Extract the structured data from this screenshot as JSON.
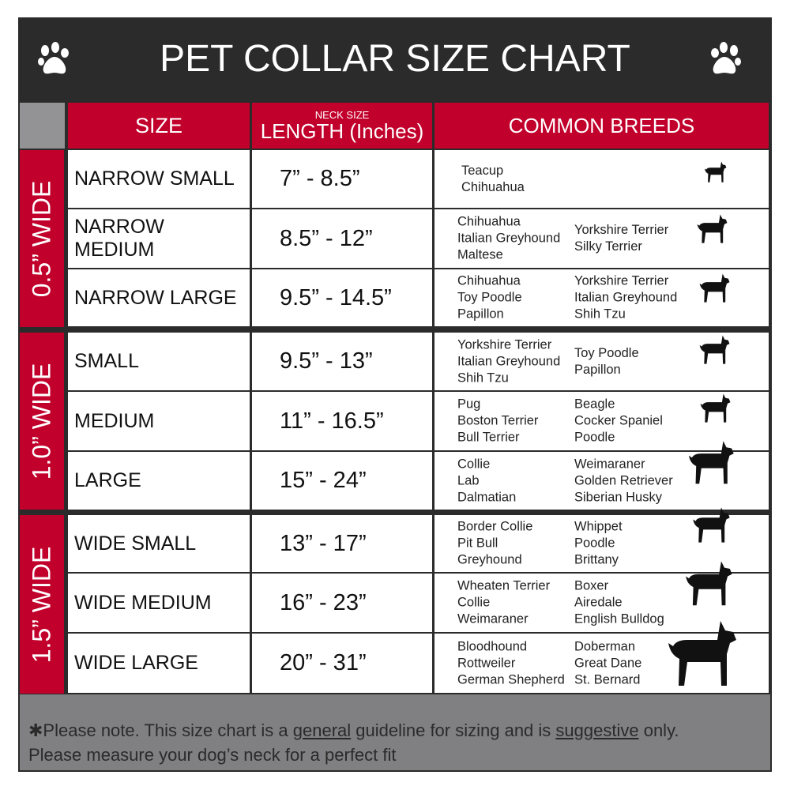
{
  "title": "PET COLLAR SIZE CHART",
  "headers": {
    "size": "SIZE",
    "neck_small": "NECK SIZE",
    "length": "LENGTH (Inches)",
    "breeds": "COMMON BREEDS"
  },
  "groups": [
    "0.5” WIDE",
    "1.0” WIDE",
    "1.5” WIDE"
  ],
  "rows": [
    {
      "size": "NARROW SMALL",
      "length": "7” - 8.5”",
      "col1": [
        "Teacup",
        "Chihuahua"
      ],
      "col2": []
    },
    {
      "size": "NARROW MEDIUM",
      "length": "8.5” - 12”",
      "col1": [
        "Chihuahua",
        "Italian Greyhound",
        "Maltese"
      ],
      "col2": [
        "Yorkshire Terrier",
        "Silky Terrier"
      ]
    },
    {
      "size": "NARROW LARGE",
      "length": "9.5” - 14.5”",
      "col1": [
        "Chihuahua",
        "Toy Poodle",
        "Papillon"
      ],
      "col2": [
        "Yorkshire Terrier",
        "Italian Greyhound",
        "Shih Tzu"
      ]
    },
    {
      "size": "SMALL",
      "length": "9.5” - 13”",
      "col1": [
        "Yorkshire Terrier",
        "Italian Greyhound",
        "Shih Tzu"
      ],
      "col2": [
        "Toy Poodle",
        "Papillon"
      ]
    },
    {
      "size": "MEDIUM",
      "length": "11” - 16.5”",
      "col1": [
        "Pug",
        "Boston Terrier",
        "Bull Terrier"
      ],
      "col2": [
        "Beagle",
        "Cocker Spaniel",
        "Poodle"
      ]
    },
    {
      "size": "LARGE",
      "length": "15” - 24”",
      "col1": [
        "Collie",
        "Lab",
        "Dalmatian"
      ],
      "col2": [
        "Weimaraner",
        "Golden Retriever",
        "Siberian Husky"
      ]
    },
    {
      "size": "WIDE SMALL",
      "length": "13” - 17”",
      "col1": [
        "Border Collie",
        "Pit Bull",
        "Greyhound"
      ],
      "col2": [
        "Whippet",
        "Poodle",
        "Brittany"
      ]
    },
    {
      "size": "WIDE MEDIUM",
      "length": "16” - 23”",
      "col1": [
        "Wheaten Terrier",
        "Collie",
        "Weimaraner"
      ],
      "col2": [
        "Boxer",
        "Airedale",
        "English Bulldog"
      ]
    },
    {
      "size": "WIDE LARGE",
      "length": "20” - 31”",
      "col1": [
        "Bloodhound",
        "Rottweiler",
        "German Shepherd"
      ],
      "col2": [
        "Doberman",
        "Great Dane",
        "St. Bernard"
      ]
    }
  ],
  "footer": {
    "p1": "✱Please note. This size chart is a ",
    "u1": "general",
    "p2": " guideline for sizing and is ",
    "u2": "suggestive",
    "p3": " only.",
    "line2": "Please measure your dog’s neck for a perfect fit"
  },
  "colors": {
    "red": "#c1002b",
    "dark": "#2b2b2b",
    "gray": "#808083"
  },
  "icons": [
    "paw-icon",
    "dog-silhouette-icon"
  ]
}
